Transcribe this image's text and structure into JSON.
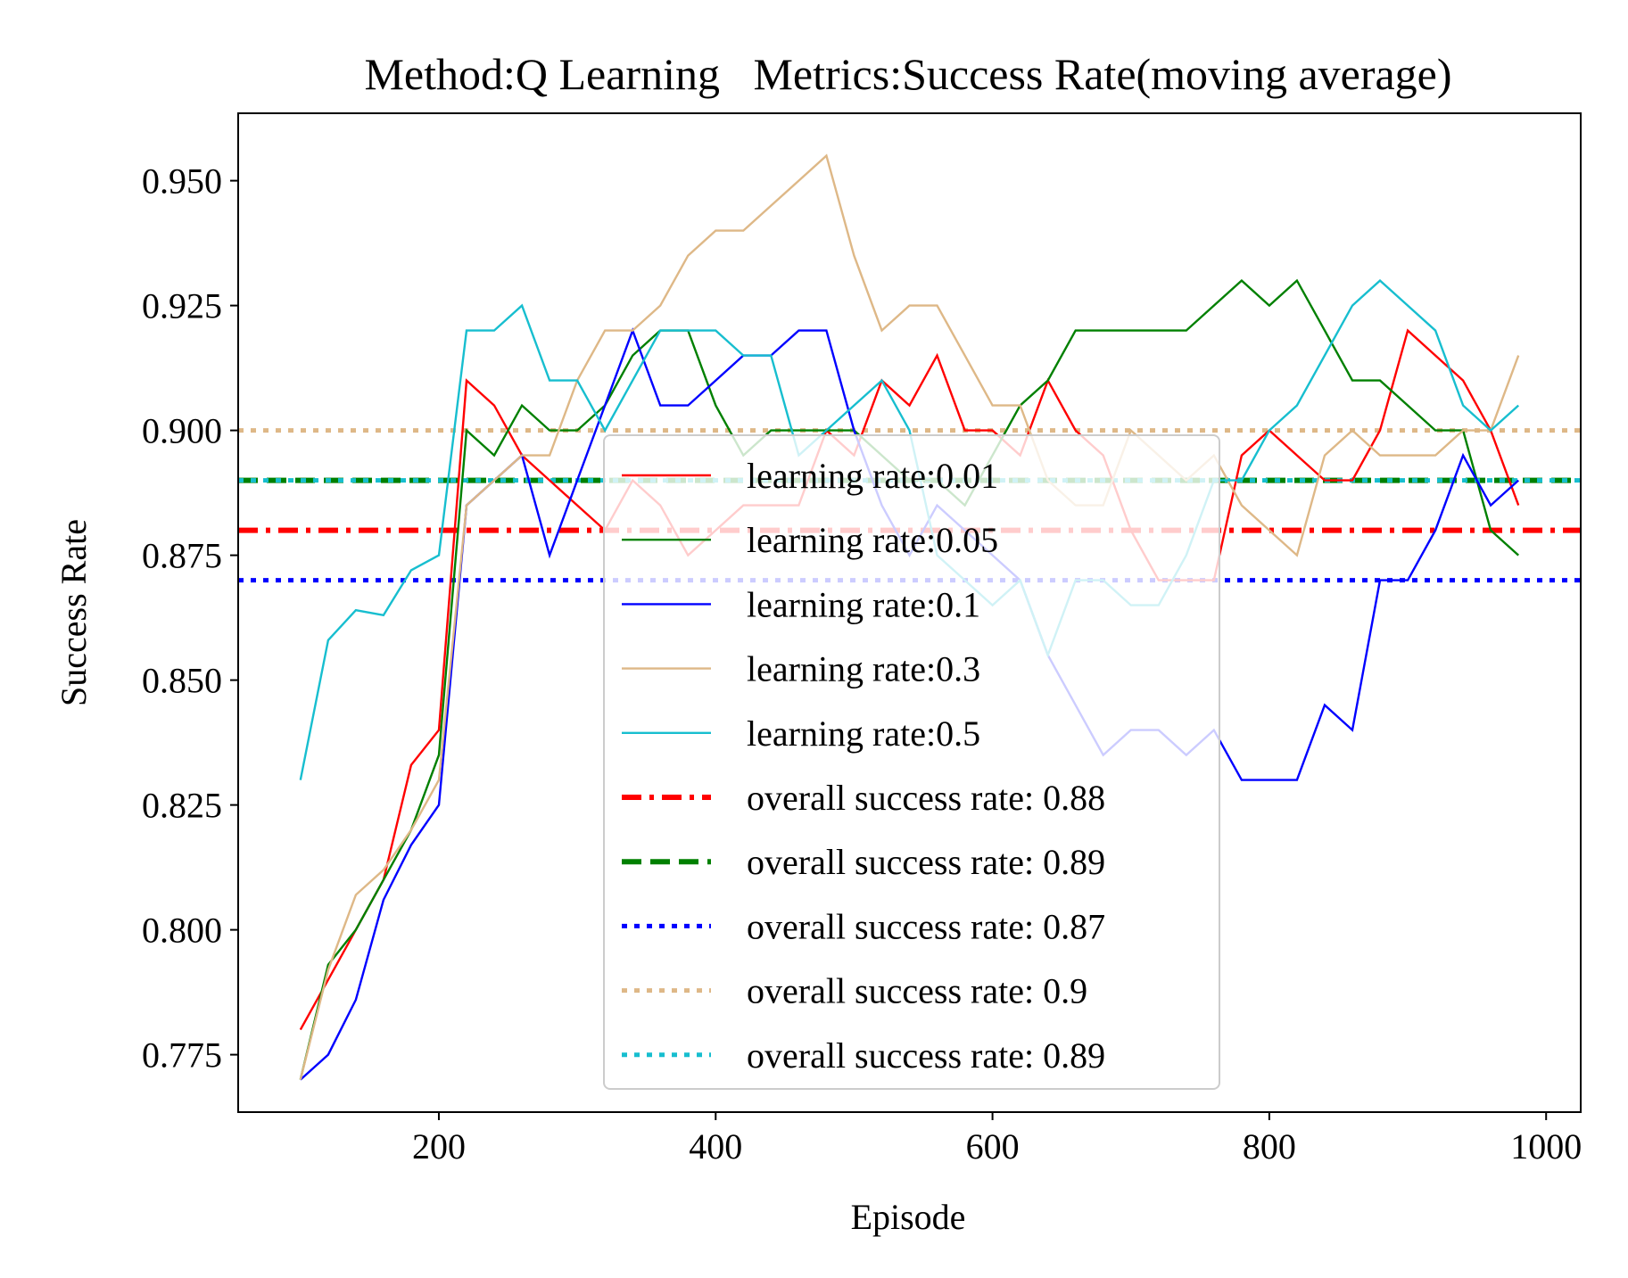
{
  "chart_data": {
    "type": "line",
    "title": "Method:Q Learning   Metrics:Success Rate(moving average)",
    "xlabel": "Episode",
    "ylabel": "Success Rate",
    "xlim": [
      55,
      1025
    ],
    "ylim": [
      0.7635,
      0.9635
    ],
    "xticks": [
      200,
      400,
      600,
      800,
      1000
    ],
    "yticks": [
      0.775,
      0.8,
      0.825,
      0.85,
      0.875,
      0.9,
      0.925,
      0.95
    ],
    "grid": false,
    "legend_position": "bottom-center",
    "x": [
      100,
      120,
      140,
      160,
      180,
      200,
      220,
      240,
      260,
      280,
      300,
      320,
      340,
      360,
      380,
      400,
      420,
      440,
      460,
      480,
      500,
      520,
      540,
      560,
      580,
      600,
      620,
      640,
      660,
      680,
      700,
      720,
      740,
      760,
      780,
      800,
      820,
      840,
      860,
      880,
      900,
      920,
      940,
      960,
      980
    ],
    "series": [
      {
        "name": "learning rate:0.01",
        "color": "#ff0000",
        "values": [
          0.78,
          0.79,
          0.8,
          0.81,
          0.833,
          0.84,
          0.91,
          0.905,
          0.895,
          0.89,
          0.885,
          0.88,
          0.89,
          0.885,
          0.875,
          0.88,
          0.885,
          0.885,
          0.885,
          0.9,
          0.895,
          0.91,
          0.905,
          0.915,
          0.9,
          0.9,
          0.895,
          0.91,
          0.9,
          0.895,
          0.88,
          0.87,
          0.87,
          0.87,
          0.895,
          0.9,
          0.895,
          0.89,
          0.89,
          0.9,
          0.92,
          0.915,
          0.91,
          0.9,
          0.885
        ]
      },
      {
        "name": "learning rate:0.05",
        "color": "#008000",
        "values": [
          0.77,
          0.793,
          0.8,
          0.81,
          0.82,
          0.835,
          0.9,
          0.895,
          0.905,
          0.9,
          0.9,
          0.905,
          0.915,
          0.92,
          0.92,
          0.905,
          0.895,
          0.9,
          0.9,
          0.9,
          0.9,
          0.895,
          0.89,
          0.89,
          0.885,
          0.895,
          0.905,
          0.91,
          0.92,
          0.92,
          0.92,
          0.92,
          0.92,
          0.925,
          0.93,
          0.925,
          0.93,
          0.92,
          0.91,
          0.91,
          0.905,
          0.9,
          0.9,
          0.88,
          0.875
        ]
      },
      {
        "name": "learning rate:0.1",
        "color": "#0000ff",
        "values": [
          0.77,
          0.775,
          0.786,
          0.806,
          0.817,
          0.825,
          0.885,
          0.89,
          0.895,
          0.875,
          0.89,
          0.905,
          0.92,
          0.905,
          0.905,
          0.91,
          0.915,
          0.915,
          0.92,
          0.92,
          0.9,
          0.885,
          0.875,
          0.885,
          0.88,
          0.875,
          0.87,
          0.855,
          0.845,
          0.835,
          0.84,
          0.84,
          0.835,
          0.84,
          0.83,
          0.83,
          0.83,
          0.845,
          0.84,
          0.87,
          0.87,
          0.88,
          0.895,
          0.885,
          0.89
        ]
      },
      {
        "name": "learning rate:0.3",
        "color": "#deb887",
        "values": [
          0.77,
          0.792,
          0.807,
          0.812,
          0.82,
          0.83,
          0.885,
          0.89,
          0.895,
          0.895,
          0.91,
          0.92,
          0.92,
          0.925,
          0.935,
          0.94,
          0.94,
          0.945,
          0.95,
          0.955,
          0.935,
          0.92,
          0.925,
          0.925,
          0.915,
          0.905,
          0.905,
          0.89,
          0.885,
          0.885,
          0.9,
          0.895,
          0.89,
          0.895,
          0.885,
          0.88,
          0.875,
          0.895,
          0.9,
          0.895,
          0.895,
          0.895,
          0.9,
          0.9,
          0.915
        ]
      },
      {
        "name": "learning rate:0.5",
        "color": "#17becf",
        "values": [
          0.83,
          0.858,
          0.864,
          0.863,
          0.872,
          0.875,
          0.92,
          0.92,
          0.925,
          0.91,
          0.91,
          0.9,
          0.91,
          0.92,
          0.92,
          0.92,
          0.915,
          0.915,
          0.895,
          0.9,
          0.905,
          0.91,
          0.9,
          0.875,
          0.87,
          0.865,
          0.87,
          0.855,
          0.87,
          0.87,
          0.865,
          0.865,
          0.875,
          0.89,
          0.89,
          0.9,
          0.905,
          0.915,
          0.925,
          0.93,
          0.925,
          0.92,
          0.905,
          0.9,
          0.905
        ]
      }
    ],
    "reference_lines": [
      {
        "name": "overall success rate: 0.88",
        "value": 0.88,
        "color": "#ff0000",
        "style": "dashdot"
      },
      {
        "name": "overall success rate: 0.89",
        "value": 0.89,
        "color": "#008000",
        "style": "dashed"
      },
      {
        "name": "overall success rate: 0.87",
        "value": 0.87,
        "color": "#0000ff",
        "style": "dotted"
      },
      {
        "name": "overall success rate: 0.9",
        "value": 0.9,
        "color": "#deb887",
        "style": "dotted"
      },
      {
        "name": "overall success rate: 0.89",
        "value": 0.89,
        "color": "#17becf",
        "style": "dotted"
      }
    ]
  }
}
